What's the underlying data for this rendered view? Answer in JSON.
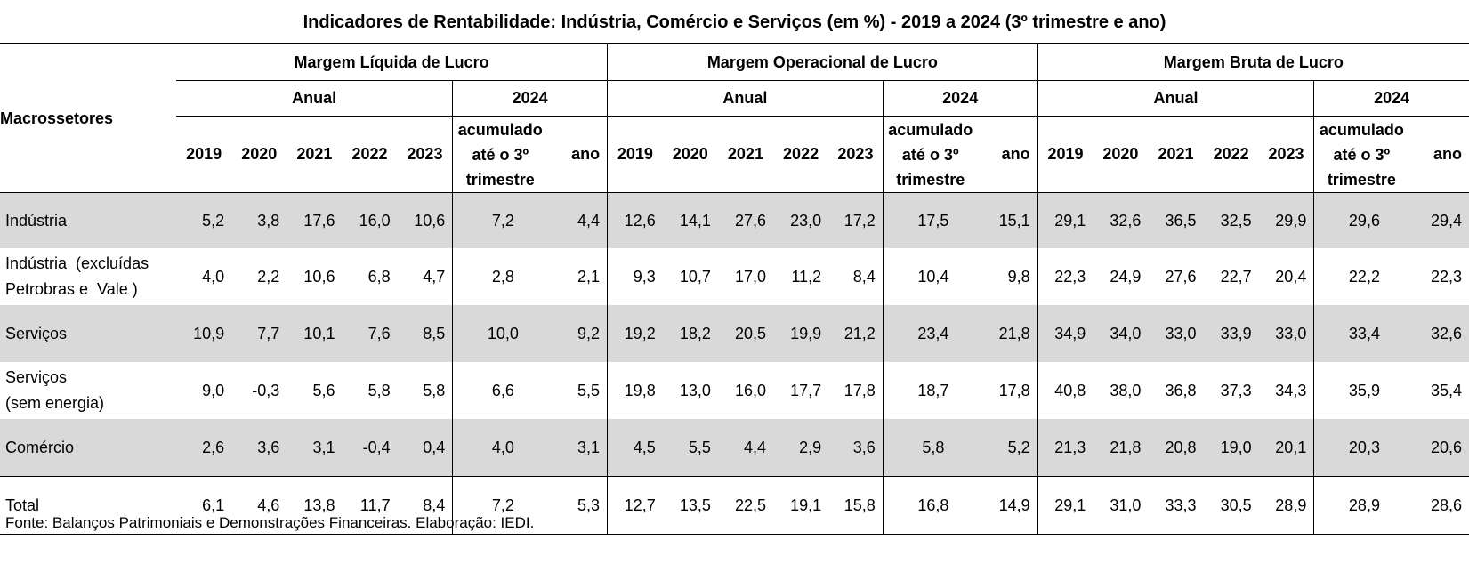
{
  "title": "Indicadores de Rentabilidade:  Indústria, Comércio e Serviços (em %) - 2019 a 2024 (3º trimestre e ano)",
  "header": {
    "row_label": "Macrossetores",
    "groups": [
      "Margem Líquida de Lucro",
      "Margem Operacional de Lucro",
      "Margem Bruta de Lucro"
    ],
    "sub_annual": "Anual",
    "sub_year": "2024",
    "years": [
      "2019",
      "2020",
      "2021",
      "2022",
      "2023"
    ],
    "accum_lines": [
      "acumulado",
      "até o 3º",
      "trimestre"
    ],
    "ano": "ano"
  },
  "rows": [
    {
      "label": [
        "Indústria"
      ],
      "values": [
        "5,2",
        "3,8",
        "17,6",
        "16,0",
        "10,6",
        "7,2",
        "4,4",
        "12,6",
        "14,1",
        "27,6",
        "23,0",
        "17,2",
        "17,5",
        "15,1",
        "29,1",
        "32,6",
        "36,5",
        "32,5",
        "29,9",
        "29,6",
        "29,4"
      ]
    },
    {
      "label": [
        "Indústria  (excluídas",
        "Petrobras e  Vale )"
      ],
      "values": [
        "4,0",
        "2,2",
        "10,6",
        "6,8",
        "4,7",
        "2,8",
        "2,1",
        "9,3",
        "10,7",
        "17,0",
        "11,2",
        "8,4",
        "10,4",
        "9,8",
        "22,3",
        "24,9",
        "27,6",
        "22,7",
        "20,4",
        "22,2",
        "22,3"
      ]
    },
    {
      "label": [
        "Serviços"
      ],
      "values": [
        "10,9",
        "7,7",
        "10,1",
        "7,6",
        "8,5",
        "10,0",
        "9,2",
        "19,2",
        "18,2",
        "20,5",
        "19,9",
        "21,2",
        "23,4",
        "21,8",
        "34,9",
        "34,0",
        "33,0",
        "33,9",
        "33,0",
        "33,4",
        "32,6"
      ]
    },
    {
      "label": [
        "Serviços",
        "(sem energia)"
      ],
      "values": [
        "9,0",
        "-0,3",
        "5,6",
        "5,8",
        "5,8",
        "6,6",
        "5,5",
        "19,8",
        "13,0",
        "16,0",
        "17,7",
        "17,8",
        "18,7",
        "17,8",
        "40,8",
        "38,0",
        "36,8",
        "37,3",
        "34,3",
        "35,9",
        "35,4"
      ]
    },
    {
      "label": [
        "Comércio"
      ],
      "values": [
        "2,6",
        "3,6",
        "3,1",
        "-0,4",
        "0,4",
        "4,0",
        "3,1",
        "4,5",
        "5,5",
        "4,4",
        "2,9",
        "3,6",
        "5,8",
        "5,2",
        "21,3",
        "21,8",
        "20,8",
        "19,0",
        "20,1",
        "20,3",
        "20,6"
      ]
    },
    {
      "label": [
        "Total"
      ],
      "values": [
        "6,1",
        "4,6",
        "13,8",
        "11,7",
        "8,4",
        "7,2",
        "5,3",
        "12,7",
        "13,5",
        "22,5",
        "19,1",
        "15,8",
        "16,8",
        "14,9",
        "29,1",
        "31,0",
        "33,3",
        "30,5",
        "28,9",
        "28,9",
        "28,6"
      ]
    }
  ],
  "source": "Fonte: Balanços Patrimoniais e Demonstrações Financeiras. Elaboração: IEDI."
}
